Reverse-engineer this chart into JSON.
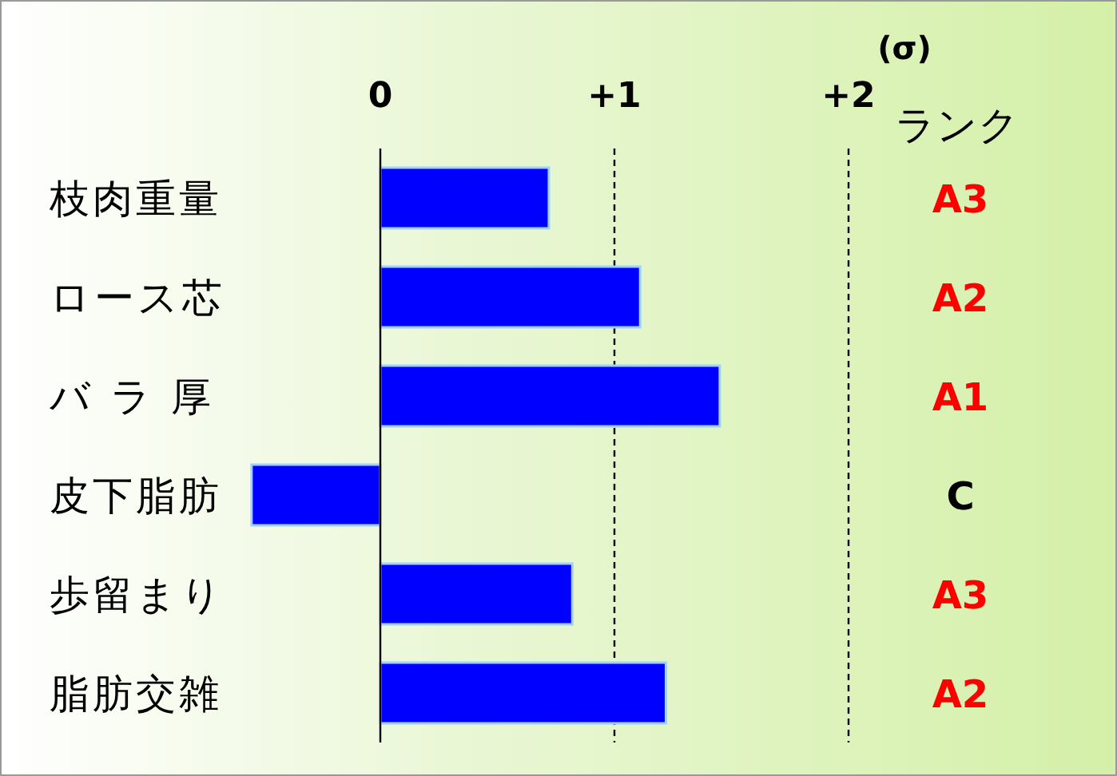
{
  "chart_data": {
    "type": "bar",
    "orientation": "horizontal",
    "xlabel": "(σ)",
    "y2label": "ランク",
    "categories": [
      "枝肉重量",
      "ロース芯",
      "バ ラ 厚",
      "皮下脂肪",
      "歩留まり",
      "脂肪交雑"
    ],
    "values": [
      0.72,
      1.11,
      1.45,
      -0.55,
      0.82,
      1.22
    ],
    "color": "#0000ff",
    "xlim": [
      -0.55,
      2
    ],
    "xticks": [
      0,
      {
        "value": 1,
        "label": "+1"
      },
      {
        "value": 2,
        "label": "+2"
      }
    ],
    "ref_lines": [
      {
        "axis": "x",
        "value": 1,
        "line_style": "dashed"
      },
      {
        "axis": "x",
        "value": 2,
        "line_style": "dashed"
      }
    ],
    "annotations": [
      "A3",
      "A2",
      "A1",
      "C",
      "A3",
      "A2"
    ]
  }
}
